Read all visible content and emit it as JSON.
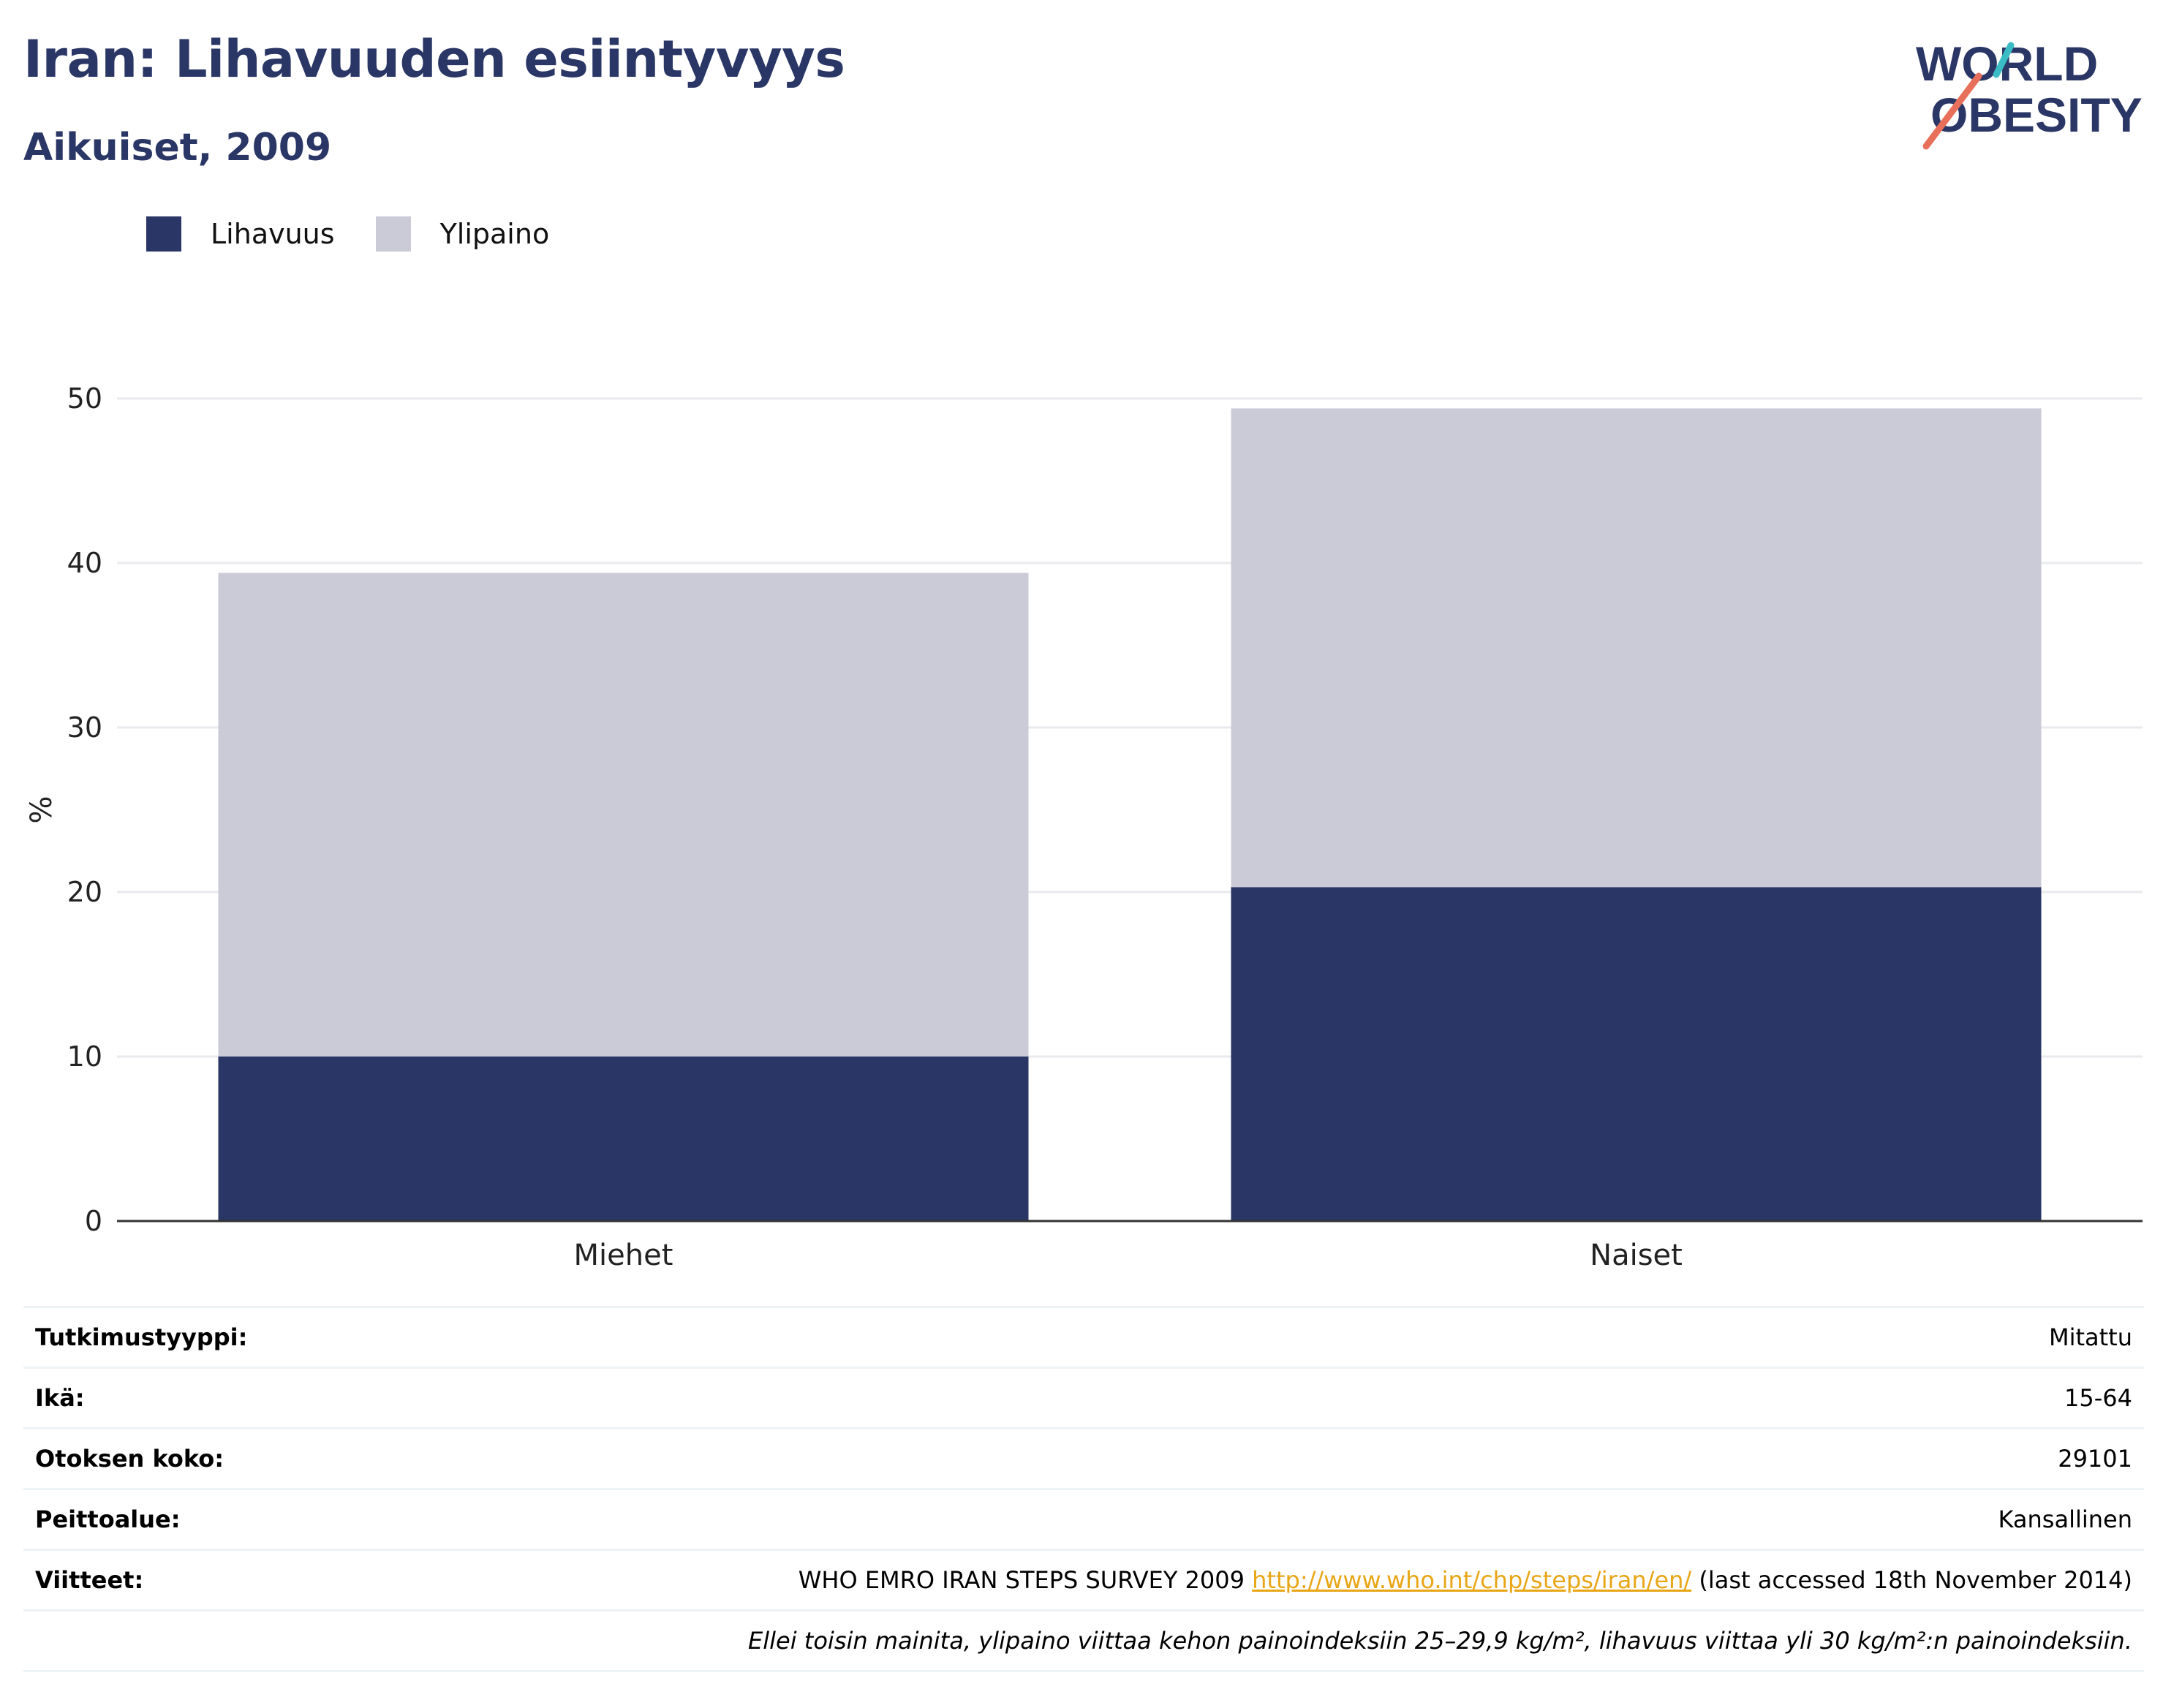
{
  "header": {
    "title": "Iran: Lihavuuden esiintyvyys",
    "subtitle": "Aikuiset, 2009"
  },
  "logo": {
    "line1": "WORLD",
    "line2": "OBESITY",
    "accent_teal": "#3bbcc4",
    "accent_coral": "#e8705a"
  },
  "colors": {
    "obesity": "#2a3665",
    "overweight": "#cacbd7",
    "grid": "#e8eaee",
    "axis": "#333333"
  },
  "legend": [
    {
      "label": "Lihavuus",
      "color": "#2a3665"
    },
    {
      "label": "Ylipaino",
      "color": "#cacbd7"
    }
  ],
  "chart_data": {
    "type": "bar",
    "stacked": true,
    "categories": [
      "Miehet",
      "Naiset"
    ],
    "series": [
      {
        "name": "Lihavuus",
        "values": [
          10.0,
          20.3
        ]
      },
      {
        "name": "Ylipaino",
        "values": [
          29.4,
          29.1
        ]
      }
    ],
    "ylabel": "%",
    "ylim": [
      0,
      50
    ],
    "yticks": [
      0,
      10,
      20,
      30,
      40,
      50
    ],
    "grid": true,
    "legend_position": "top-left"
  },
  "info_table": {
    "rows": [
      {
        "key": "Tutkimustyyppi:",
        "value": "Mitattu"
      },
      {
        "key": "Ikä:",
        "value": "15-64"
      },
      {
        "key": "Otoksen koko:",
        "value": "29101"
      },
      {
        "key": "Peittoalue:",
        "value": "Kansallinen"
      }
    ],
    "reference": {
      "key": "Viitteet:",
      "text_before": "WHO EMRO IRAN STEPS SURVEY 2009 ",
      "link": "http://www.who.int/chp/steps/iran/en/",
      "text_after": " (last accessed 18th November 2014)"
    },
    "note": "Ellei toisin mainita, ylipaino viittaa kehon painoindeksiin 25–29,9 kg/m², lihavuus viittaa yli 30 kg/m²:n painoindeksiin."
  }
}
